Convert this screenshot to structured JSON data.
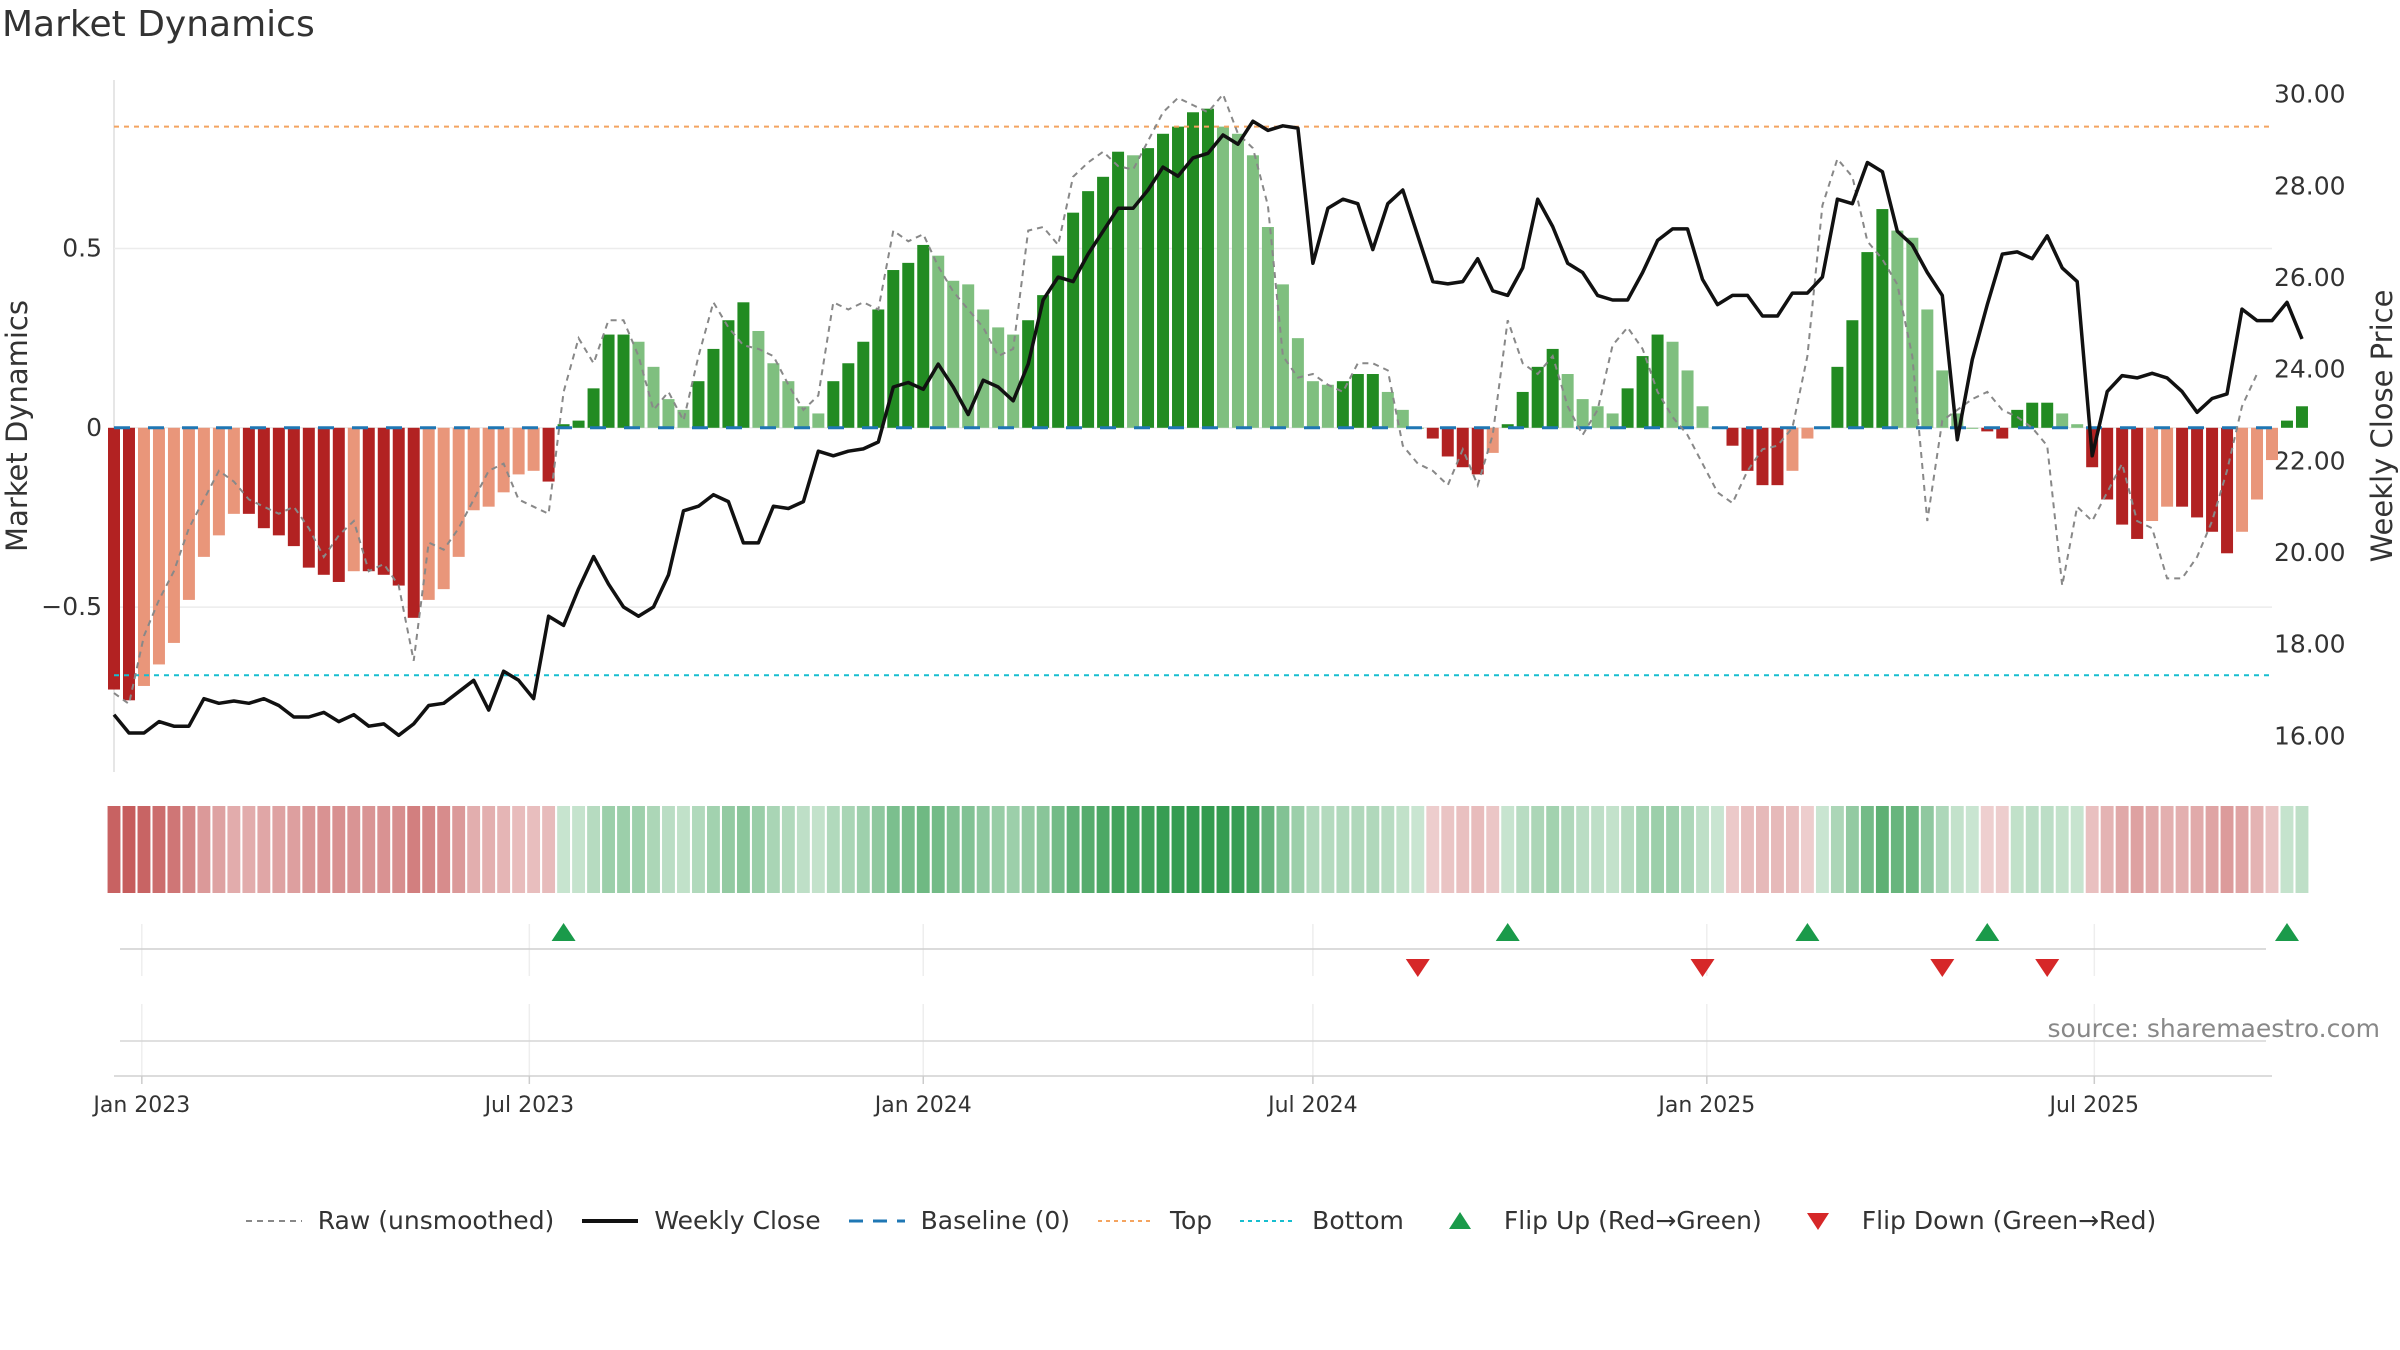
{
  "title": "Market Dynamics",
  "source": "source: sharemaestro.com",
  "colors": {
    "strong_green": "#228B22",
    "light_green": "#7FBF7F",
    "strong_red": "#B22222",
    "light_red": "#E9967A",
    "weekly_close": "#111111",
    "raw": "#888888",
    "baseline": "#1f77b4",
    "top": "#f4a460",
    "bottom": "#17becf",
    "flip_up": "#1a9a4a",
    "flip_down": "#d62728"
  },
  "legend": [
    {
      "label": "Raw (unsmoothed)",
      "kind": "raw"
    },
    {
      "label": "Weekly Close",
      "kind": "close"
    },
    {
      "label": "Baseline (0)",
      "kind": "baseline"
    },
    {
      "label": "Top",
      "kind": "top"
    },
    {
      "label": "Bottom",
      "kind": "bottom"
    },
    {
      "label": "Flip Up (Red→Green)",
      "kind": "flip_up"
    },
    {
      "label": "Flip Down (Green→Red)",
      "kind": "flip_down"
    }
  ],
  "chart_data": {
    "type": "bar",
    "title": "Market Dynamics",
    "ylabel_left": "Market Dynamics",
    "ylabel_right": "Weekly Close Price",
    "x_range": [
      "2022-12-19",
      "2025-09-22"
    ],
    "x_ticks": [
      {
        "date": "2023-01-01",
        "label": "Jan 2023"
      },
      {
        "date": "2023-07-01",
        "label": "Jul 2023"
      },
      {
        "date": "2024-01-01",
        "label": "Jan 2024"
      },
      {
        "date": "2024-07-01",
        "label": "Jul 2024"
      },
      {
        "date": "2025-01-01",
        "label": "Jan 2025"
      },
      {
        "date": "2025-07-01",
        "label": "Jul 2025"
      }
    ],
    "y_left": {
      "min": -0.96,
      "max": 0.97,
      "ticks": [
        {
          "v": 0.5,
          "label": "0.5"
        },
        {
          "v": 0,
          "label": "0"
        },
        {
          "v": -0.5,
          "label": "−0.5"
        }
      ]
    },
    "y_right": {
      "min": 15.2,
      "max": 30.3,
      "ticks": [
        16,
        18,
        20,
        22,
        24,
        26,
        28,
        30
      ]
    },
    "top_level": 0.84,
    "bottom_level": -0.69,
    "first_week": "2022-12-19",
    "week_days": 7,
    "series": [
      {
        "name": "Market Dynamics",
        "values": [
          -0.73,
          -0.76,
          -0.72,
          -0.66,
          -0.6,
          -0.48,
          -0.36,
          -0.3,
          -0.24,
          -0.24,
          -0.28,
          -0.3,
          -0.33,
          -0.39,
          -0.41,
          -0.43,
          -0.4,
          -0.4,
          -0.41,
          -0.44,
          -0.53,
          -0.48,
          -0.45,
          -0.36,
          -0.23,
          -0.22,
          -0.18,
          -0.13,
          -0.12,
          -0.15,
          0.01,
          0.02,
          0.11,
          0.26,
          0.26,
          0.24,
          0.17,
          0.08,
          0.05,
          0.13,
          0.22,
          0.3,
          0.35,
          0.27,
          0.18,
          0.13,
          0.06,
          0.04,
          0.13,
          0.18,
          0.24,
          0.33,
          0.44,
          0.46,
          0.51,
          0.48,
          0.41,
          0.4,
          0.33,
          0.28,
          0.26,
          0.3,
          0.37,
          0.48,
          0.6,
          0.66,
          0.7,
          0.77,
          0.76,
          0.78,
          0.82,
          0.84,
          0.88,
          0.89,
          0.84,
          0.82,
          0.76,
          0.56,
          0.4,
          0.25,
          0.13,
          0.12,
          0.13,
          0.15,
          0.15,
          0.1,
          0.05,
          0.0,
          -0.03,
          -0.08,
          -0.11,
          -0.13,
          -0.07,
          0.01,
          0.1,
          0.17,
          0.22,
          0.15,
          0.08,
          0.06,
          0.04,
          0.11,
          0.2,
          0.26,
          0.24,
          0.16,
          0.06,
          0.0,
          -0.05,
          -0.12,
          -0.16,
          -0.16,
          -0.12,
          -0.03,
          0.0,
          0.17,
          0.3,
          0.49,
          0.61,
          0.55,
          0.53,
          0.33,
          0.16,
          0.04,
          0.0,
          -0.01,
          -0.03,
          0.05,
          0.07,
          0.07,
          0.04,
          0.01,
          -0.11,
          -0.2,
          -0.27,
          -0.31,
          -0.26,
          -0.22,
          -0.22,
          -0.25,
          -0.29,
          -0.35,
          -0.29,
          -0.2,
          -0.09,
          0.02,
          0.06
        ]
      },
      {
        "name": "Raw (unsmoothed)",
        "values": [
          -0.74,
          -0.77,
          -0.58,
          -0.48,
          -0.4,
          -0.28,
          -0.2,
          -0.12,
          -0.15,
          -0.2,
          -0.22,
          -0.24,
          -0.22,
          -0.28,
          -0.36,
          -0.3,
          -0.26,
          -0.4,
          -0.38,
          -0.44,
          -0.65,
          -0.32,
          -0.34,
          -0.28,
          -0.2,
          -0.12,
          -0.1,
          -0.2,
          -0.22,
          -0.24,
          0.1,
          0.25,
          0.18,
          0.3,
          0.3,
          0.2,
          0.05,
          0.1,
          0.02,
          0.2,
          0.35,
          0.28,
          0.23,
          0.22,
          0.2,
          0.12,
          0.05,
          0.09,
          0.35,
          0.33,
          0.35,
          0.33,
          0.55,
          0.52,
          0.54,
          0.45,
          0.38,
          0.33,
          0.28,
          0.2,
          0.22,
          0.55,
          0.56,
          0.51,
          0.7,
          0.74,
          0.77,
          0.73,
          0.72,
          0.8,
          0.88,
          0.92,
          0.9,
          0.88,
          0.93,
          0.82,
          0.78,
          0.62,
          0.2,
          0.14,
          0.15,
          0.12,
          0.1,
          0.18,
          0.18,
          0.16,
          -0.05,
          -0.1,
          -0.12,
          -0.16,
          -0.06,
          -0.16,
          -0.02,
          0.3,
          0.18,
          0.15,
          0.2,
          0.06,
          -0.02,
          0.05,
          0.23,
          0.28,
          0.22,
          0.1,
          0.03,
          -0.02,
          -0.1,
          -0.18,
          -0.21,
          -0.12,
          -0.06,
          -0.05,
          0.0,
          0.2,
          0.62,
          0.75,
          0.7,
          0.52,
          0.47,
          0.4,
          0.2,
          -0.26,
          0.02,
          0.05,
          0.08,
          0.1,
          0.05,
          0.03,
          0.0,
          -0.05,
          -0.44,
          -0.22,
          -0.26,
          -0.18,
          -0.1,
          -0.26,
          -0.28,
          -0.42,
          -0.42,
          -0.36,
          -0.26,
          -0.12,
          0.06,
          0.15
        ]
      },
      {
        "name": "Weekly Close",
        "values": [
          16.45,
          16.05,
          16.05,
          16.3,
          16.2,
          16.2,
          16.8,
          16.7,
          16.75,
          16.7,
          16.8,
          16.65,
          16.4,
          16.4,
          16.5,
          16.3,
          16.45,
          16.2,
          16.25,
          16.0,
          16.25,
          16.65,
          16.7,
          16.95,
          17.2,
          16.55,
          17.4,
          17.2,
          16.8,
          18.6,
          18.4,
          19.2,
          19.9,
          19.3,
          18.8,
          18.6,
          18.8,
          19.5,
          20.9,
          21.0,
          21.25,
          21.1,
          20.2,
          20.2,
          21.0,
          20.95,
          21.1,
          22.2,
          22.1,
          22.2,
          22.25,
          22.4,
          23.6,
          23.7,
          23.55,
          24.1,
          23.6,
          23.0,
          23.75,
          23.6,
          23.3,
          24.1,
          25.5,
          26.0,
          25.9,
          26.5,
          27.0,
          27.5,
          27.5,
          27.9,
          28.4,
          28.2,
          28.6,
          28.7,
          29.1,
          28.9,
          29.4,
          29.2,
          29.3,
          29.25,
          26.3,
          27.5,
          27.7,
          27.6,
          26.6,
          27.6,
          27.9,
          26.9,
          25.9,
          25.85,
          25.9,
          26.4,
          25.7,
          25.6,
          26.2,
          27.7,
          27.1,
          26.3,
          26.1,
          25.6,
          25.5,
          25.5,
          26.1,
          26.8,
          27.05,
          27.05,
          25.95,
          25.4,
          25.6,
          25.6,
          25.15,
          25.15,
          25.65,
          25.65,
          26.0,
          27.7,
          27.6,
          28.5,
          28.3,
          27.0,
          26.7,
          26.1,
          25.6,
          22.45,
          24.2,
          25.4,
          26.5,
          26.55,
          26.4,
          26.9,
          26.2,
          25.9,
          22.1,
          23.5,
          23.85,
          23.8,
          23.9,
          23.8,
          23.5,
          23.05,
          23.35,
          23.45,
          25.3,
          25.05,
          25.05,
          25.45,
          24.65
        ]
      }
    ],
    "heat_row": [
      -0.73,
      -0.76,
      -0.72,
      -0.66,
      -0.6,
      -0.48,
      -0.36,
      -0.3,
      -0.24,
      -0.24,
      -0.28,
      -0.3,
      -0.33,
      -0.39,
      -0.41,
      -0.43,
      -0.4,
      -0.4,
      -0.41,
      -0.44,
      -0.53,
      -0.48,
      -0.45,
      -0.36,
      -0.23,
      -0.22,
      -0.18,
      -0.13,
      -0.12,
      -0.15,
      0.01,
      0.02,
      0.11,
      0.26,
      0.26,
      0.24,
      0.17,
      0.08,
      0.05,
      0.13,
      0.22,
      0.3,
      0.35,
      0.27,
      0.18,
      0.13,
      0.06,
      0.04,
      0.13,
      0.18,
      0.24,
      0.33,
      0.44,
      0.46,
      0.51,
      0.48,
      0.41,
      0.4,
      0.33,
      0.28,
      0.26,
      0.3,
      0.37,
      0.48,
      0.6,
      0.66,
      0.7,
      0.77,
      0.76,
      0.78,
      0.82,
      0.84,
      0.88,
      0.89,
      0.84,
      0.82,
      0.76,
      0.56,
      0.4,
      0.25,
      0.13,
      0.12,
      0.13,
      0.15,
      0.15,
      0.1,
      0.05,
      0.0,
      -0.03,
      -0.08,
      -0.11,
      -0.13,
      -0.07,
      0.01,
      0.1,
      0.17,
      0.22,
      0.15,
      0.08,
      0.06,
      0.04,
      0.11,
      0.2,
      0.26,
      0.24,
      0.16,
      0.06,
      0.0,
      -0.05,
      -0.12,
      -0.16,
      -0.16,
      -0.12,
      -0.03,
      0.0,
      0.17,
      0.3,
      0.49,
      0.61,
      0.55,
      0.53,
      0.33,
      0.16,
      0.04,
      0.0,
      -0.01,
      -0.03,
      0.05,
      0.07,
      0.07,
      0.04,
      0.01,
      -0.11,
      -0.2,
      -0.27,
      -0.31,
      -0.26,
      -0.22,
      -0.22,
      -0.25,
      -0.29,
      -0.35,
      -0.29,
      -0.2,
      -0.09,
      0.02,
      0.06
    ],
    "flip_up_weeks": [
      30,
      93,
      113,
      125,
      145
    ],
    "flip_down_weeks": [
      87,
      106,
      122,
      129
    ]
  }
}
